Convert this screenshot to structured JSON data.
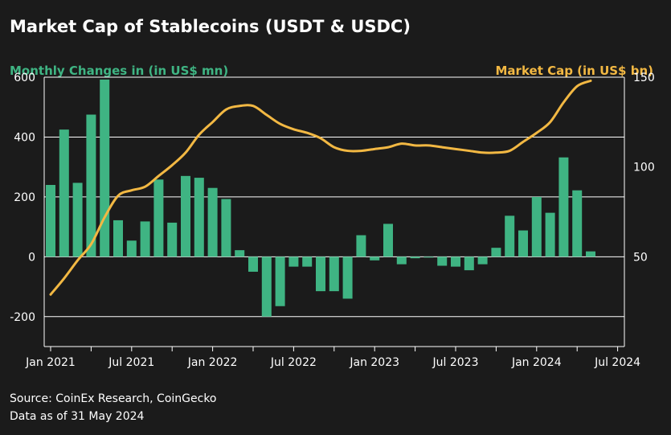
{
  "chart_data": {
    "type": "bar+line",
    "title": "Market Cap of Stablecoins (USDT & USDC)",
    "left_axis_label": "Monthly Changes in (in US$ mn)",
    "right_axis_label": "Market Cap (in US$ bn)",
    "left_ylim": [
      -300,
      600
    ],
    "left_yticks": [
      600,
      400,
      200,
      0,
      -200
    ],
    "left_ytick_labels": [
      "600",
      "400",
      "200",
      "0",
      "-200"
    ],
    "right_ylim": [
      0,
      150
    ],
    "right_yticks": [
      150,
      100,
      50
    ],
    "right_ytick_labels": [
      "150",
      "100",
      "50"
    ],
    "x_tick_labels": [
      "Jan 2021",
      "Jul 2021",
      "Jan 2022",
      "Jul 2022",
      "Jan 2023",
      "Jul 2023",
      "Jan 2024",
      "Jul 2024"
    ],
    "grid": "horizontal",
    "bar_series": {
      "color": "#3fb483",
      "months": [
        "Jan 2021",
        "Feb 2021",
        "Mar 2021",
        "Apr 2021",
        "May 2021",
        "Jun 2021",
        "Jul 2021",
        "Aug 2021",
        "Sep 2021",
        "Oct 2021",
        "Nov 2021",
        "Dec 2021",
        "Jan 2022",
        "Feb 2022",
        "Mar 2022",
        "Apr 2022",
        "May 2022",
        "Jun 2022",
        "Jul 2022",
        "Aug 2022",
        "Sep 2022",
        "Oct 2022",
        "Nov 2022",
        "Dec 2022",
        "Jan 2023",
        "Feb 2023",
        "Mar 2023",
        "Apr 2023",
        "May 2023",
        "Jun 2023",
        "Jul 2023",
        "Aug 2023",
        "Sep 2023",
        "Oct 2023",
        "Nov 2023",
        "Dec 2023",
        "Jan 2024",
        "Feb 2024",
        "Mar 2024",
        "Apr 2024",
        "May 2024"
      ],
      "values": [
        240,
        425,
        247,
        475,
        592,
        122,
        54,
        118,
        258,
        114,
        270,
        264,
        230,
        193,
        22,
        -50,
        -200,
        -165,
        -33,
        -33,
        -115,
        -115,
        -140,
        72,
        -12,
        110,
        -25,
        -5,
        0,
        -30,
        -33,
        -45,
        -25,
        30,
        137,
        88,
        200,
        147,
        332,
        222,
        18
      ]
    },
    "line_series": {
      "color": "#f2b843",
      "points": [
        [
          "2021-01",
          29
        ],
        [
          "2021-02",
          38
        ],
        [
          "2021-03",
          48
        ],
        [
          "2021-04",
          57
        ],
        [
          "2021-05",
          72
        ],
        [
          "2021-06",
          84
        ],
        [
          "2021-07",
          87
        ],
        [
          "2021-08",
          89
        ],
        [
          "2021-09",
          95
        ],
        [
          "2021-10",
          101
        ],
        [
          "2021-11",
          108
        ],
        [
          "2021-12",
          118
        ],
        [
          "2022-01",
          125
        ],
        [
          "2022-02",
          132
        ],
        [
          "2022-03",
          134
        ],
        [
          "2022-04",
          134
        ],
        [
          "2022-05",
          129
        ],
        [
          "2022-06",
          124
        ],
        [
          "2022-07",
          121
        ],
        [
          "2022-08",
          119
        ],
        [
          "2022-09",
          116
        ],
        [
          "2022-10",
          111
        ],
        [
          "2022-11",
          109
        ],
        [
          "2022-12",
          109
        ],
        [
          "2023-01",
          110
        ],
        [
          "2023-02",
          111
        ],
        [
          "2023-03",
          113
        ],
        [
          "2023-04",
          112
        ],
        [
          "2023-05",
          112
        ],
        [
          "2023-06",
          111
        ],
        [
          "2023-07",
          110
        ],
        [
          "2023-08",
          109
        ],
        [
          "2023-09",
          108
        ],
        [
          "2023-10",
          108
        ],
        [
          "2023-11",
          109
        ],
        [
          "2023-12",
          114
        ],
        [
          "2024-01",
          119
        ],
        [
          "2024-02",
          125
        ],
        [
          "2024-03",
          136
        ],
        [
          "2024-04",
          145
        ],
        [
          "2024-05",
          148
        ]
      ]
    }
  },
  "footer": {
    "source": "Source: CoinEx Research, CoinGecko",
    "date_note": "Data as of 31 May 2024"
  },
  "colors": {
    "background": "#1b1b1b",
    "bar": "#3fb483",
    "line": "#f2b843",
    "grid": "#ffffff",
    "text": "#ffffff"
  }
}
